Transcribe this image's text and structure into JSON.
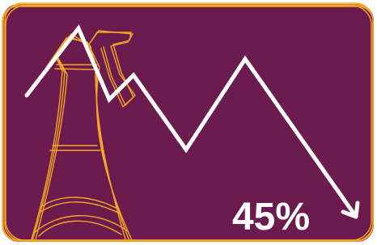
{
  "label": "45%"
}
